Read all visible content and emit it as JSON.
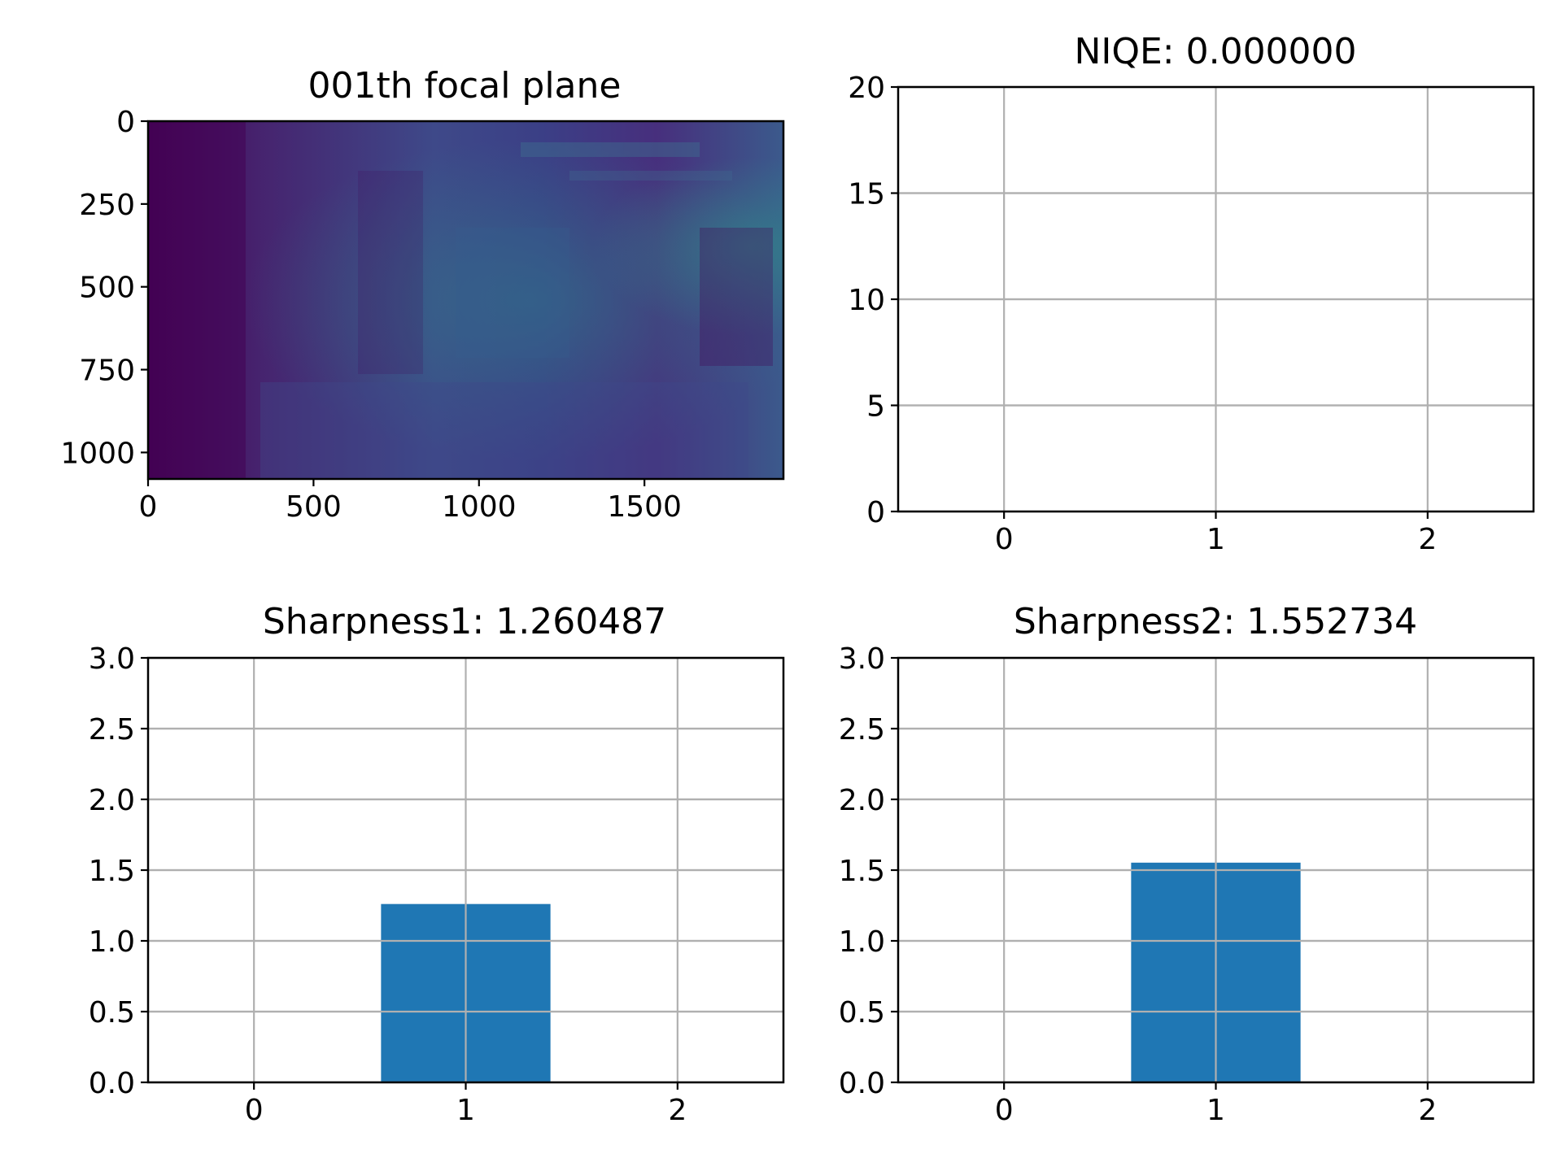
{
  "chart_data": [
    {
      "type": "heatmap",
      "title": "001th focal plane",
      "colormap": "viridis",
      "xlim": [
        0,
        1920
      ],
      "ylim": [
        1080,
        0
      ],
      "x_ticks": [
        "0",
        "500",
        "1000",
        "1500"
      ],
      "y_ticks": [
        "0",
        "250",
        "500",
        "750",
        "1000"
      ],
      "grid": false
    },
    {
      "type": "bar",
      "title": "NIQE: 0.000000",
      "categories": [
        "0",
        "1",
        "2"
      ],
      "values": [
        0,
        0.0,
        0
      ],
      "xlim": [
        -0.5,
        2.5
      ],
      "ylim": [
        0,
        20
      ],
      "y_ticks": [
        "0",
        "5",
        "10",
        "15",
        "20"
      ],
      "grid": true,
      "color": "#1f77b4"
    },
    {
      "type": "bar",
      "title": "Sharpness1: 1.260487",
      "categories": [
        "0",
        "1",
        "2"
      ],
      "values": [
        0,
        1.260487,
        0
      ],
      "xlim": [
        -0.5,
        2.5
      ],
      "ylim": [
        0,
        3
      ],
      "y_ticks": [
        "0.0",
        "0.5",
        "1.0",
        "1.5",
        "2.0",
        "2.5",
        "3.0"
      ],
      "grid": true,
      "color": "#1f77b4"
    },
    {
      "type": "bar",
      "title": "Sharpness2: 1.552734",
      "categories": [
        "0",
        "1",
        "2"
      ],
      "values": [
        0,
        1.552734,
        0
      ],
      "xlim": [
        -0.5,
        2.5
      ],
      "ylim": [
        0,
        3
      ],
      "y_ticks": [
        "0.0",
        "0.5",
        "1.0",
        "1.5",
        "2.0",
        "2.5",
        "3.0"
      ],
      "grid": true,
      "color": "#1f77b4"
    }
  ]
}
